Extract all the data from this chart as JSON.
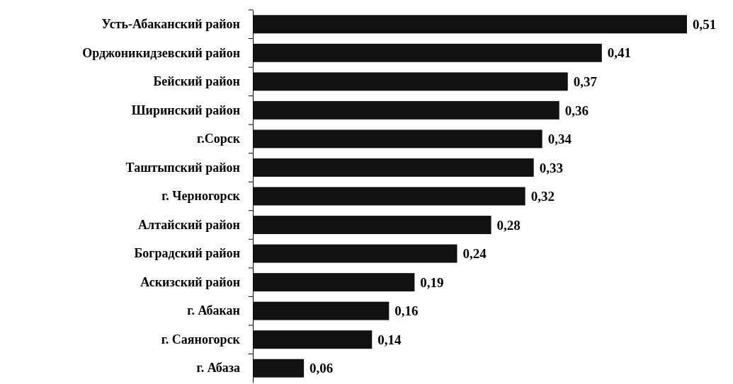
{
  "chart_data": {
    "type": "bar",
    "orientation": "horizontal",
    "categories": [
      "Усть-Абаканский район",
      "Орджоникидзевский район",
      "Бейский район",
      "Ширинский район",
      "г.Сорск",
      "Таштыпский район",
      "г. Черногорск",
      "Алтайский район",
      "Боградский район",
      "Аскизский район",
      "г. Абакан",
      "г. Саяногорск",
      "г. Абаза"
    ],
    "values": [
      0.51,
      0.41,
      0.37,
      0.36,
      0.34,
      0.33,
      0.32,
      0.28,
      0.24,
      0.19,
      0.16,
      0.14,
      0.06
    ],
    "value_labels": [
      "0,51",
      "0,41",
      "0,37",
      "0,36",
      "0,34",
      "0,33",
      "0,32",
      "0,28",
      "0,24",
      "0,19",
      "0,16",
      "0,14",
      "0,06"
    ],
    "color": "#111111",
    "xlim": [
      0,
      0.51
    ]
  }
}
